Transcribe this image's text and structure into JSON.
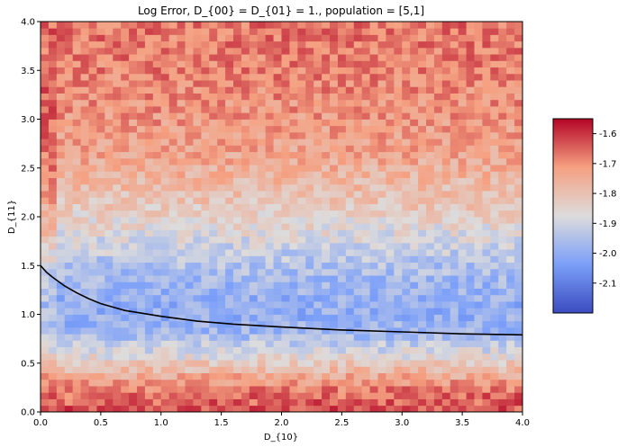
{
  "chart_data": {
    "type": "heatmap",
    "title": "Log Error, D_{00} = D_{01} = 1., population = [5,1]",
    "xlabel": "D_{10}",
    "ylabel": "D_{11}",
    "xlim": [
      0,
      4
    ],
    "ylim": [
      0,
      4
    ],
    "grid": "off",
    "colormap": "coolwarm",
    "x_ticks": [
      "0.0",
      "0.5",
      "1.0",
      "1.5",
      "2.0",
      "2.5",
      "3.0",
      "3.5",
      "4.0"
    ],
    "y_ticks": [
      "0.0",
      "0.5",
      "1.0",
      "1.5",
      "2.0",
      "2.5",
      "3.0",
      "3.5",
      "4.0"
    ],
    "colorbar": {
      "min": -2.2,
      "max": -1.55,
      "ticks": [
        "-1.6",
        "-1.7",
        "-1.8",
        "-1.9",
        "-2.0",
        "-2.1"
      ],
      "tick_values": [
        -1.6,
        -1.7,
        -1.8,
        -1.9,
        -2.0,
        -2.1
      ]
    },
    "grid_resolution": [
      60,
      60
    ],
    "value_profile_by_d11": [
      {
        "d11": 0.0,
        "value": -1.63
      },
      {
        "d11": 0.2,
        "value": -1.66
      },
      {
        "d11": 0.4,
        "value": -1.76
      },
      {
        "d11": 0.6,
        "value": -1.88
      },
      {
        "d11": 0.8,
        "value": -1.97
      },
      {
        "d11": 1.0,
        "value": -2.0
      },
      {
        "d11": 1.2,
        "value": -1.99
      },
      {
        "d11": 1.5,
        "value": -1.95
      },
      {
        "d11": 1.8,
        "value": -1.88
      },
      {
        "d11": 2.2,
        "value": -1.8
      },
      {
        "d11": 2.6,
        "value": -1.74
      },
      {
        "d11": 3.0,
        "value": -1.71
      },
      {
        "d11": 3.5,
        "value": -1.68
      },
      {
        "d11": 4.0,
        "value": -1.67
      }
    ],
    "line_series": {
      "x": [
        0.0,
        0.05,
        0.1,
        0.2,
        0.3,
        0.4,
        0.5,
        0.7,
        1.0,
        1.3,
        1.6,
        2.0,
        2.5,
        3.0,
        3.5,
        4.0
      ],
      "y": [
        1.5,
        1.43,
        1.38,
        1.29,
        1.22,
        1.16,
        1.11,
        1.04,
        0.98,
        0.93,
        0.9,
        0.87,
        0.84,
        0.82,
        0.8,
        0.79
      ],
      "color": "#000000"
    }
  }
}
